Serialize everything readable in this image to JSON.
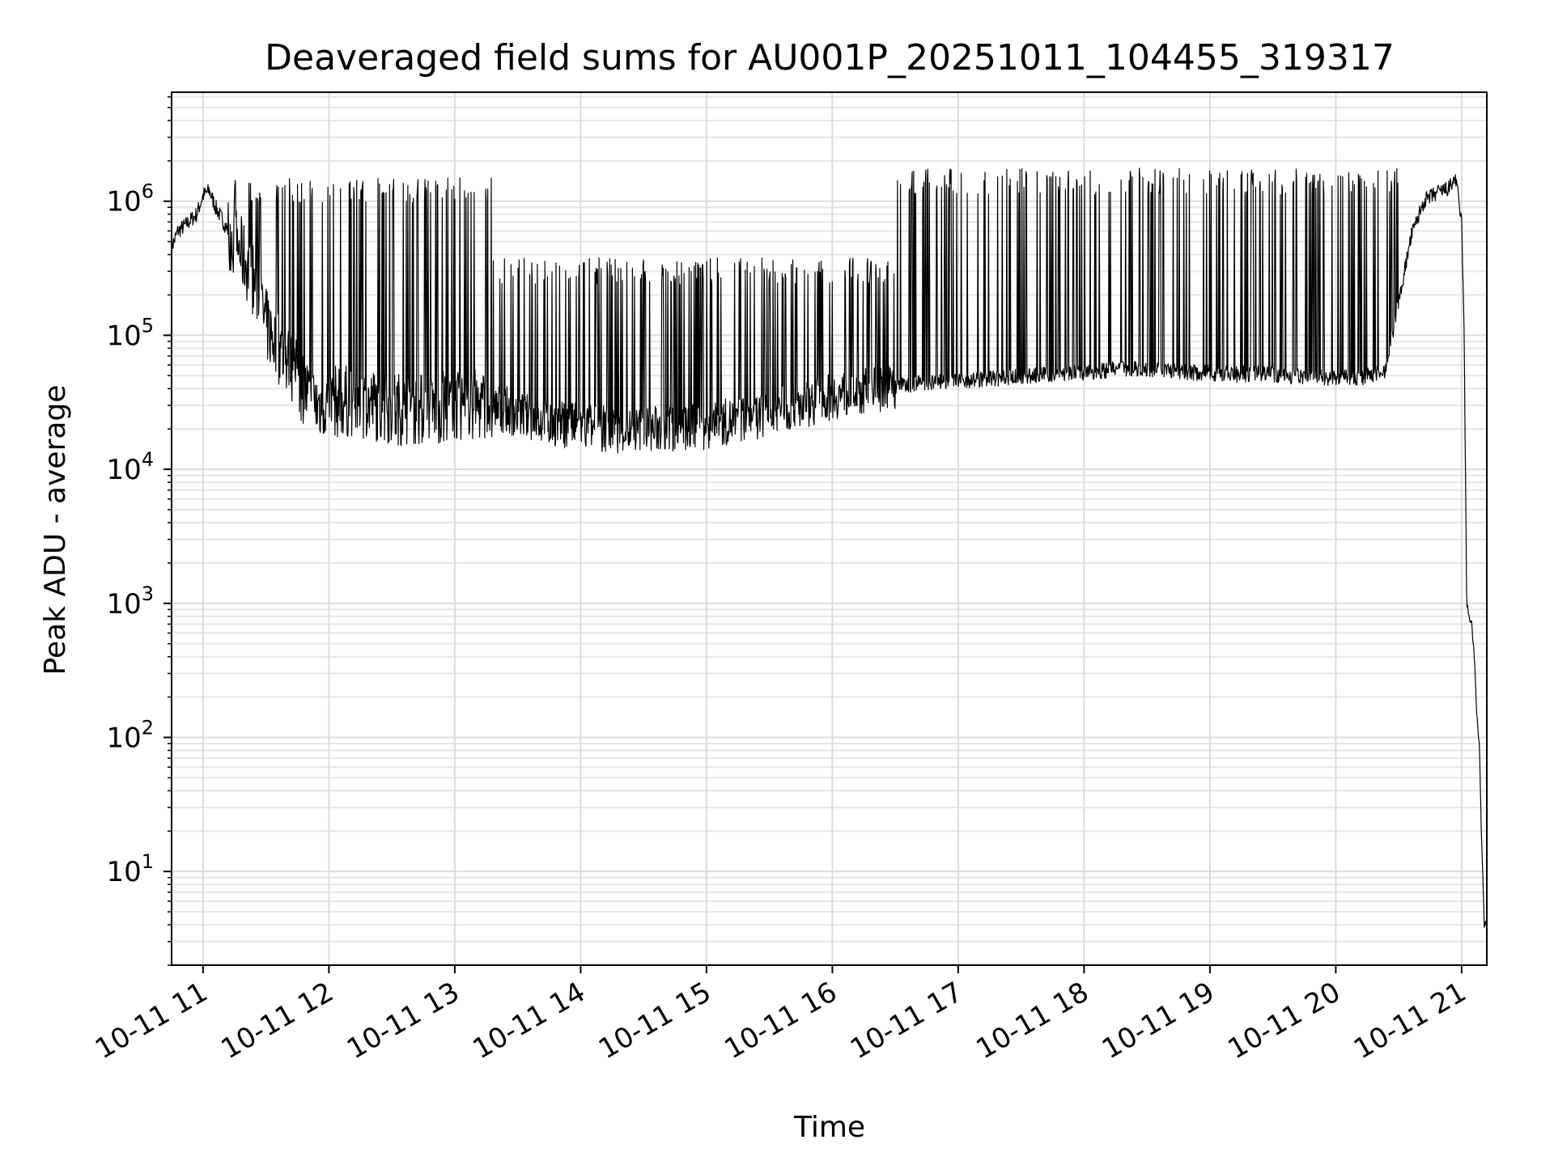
{
  "chart_data": {
    "type": "line",
    "title": "Deaveraged field sums for AU001P_20251011_104455_319317",
    "xlabel": "Time",
    "ylabel": "Peak ADU - average",
    "yscale": "log",
    "xlim_hours": [
      10.75,
      21.2
    ],
    "ylim": [
      2,
      6500000
    ],
    "grid": true,
    "line_color": "#000000",
    "x_ticks": [
      {
        "hour": 11,
        "label": "10-11 11"
      },
      {
        "hour": 12,
        "label": "10-11 12"
      },
      {
        "hour": 13,
        "label": "10-11 13"
      },
      {
        "hour": 14,
        "label": "10-11 14"
      },
      {
        "hour": 15,
        "label": "10-11 15"
      },
      {
        "hour": 16,
        "label": "10-11 16"
      },
      {
        "hour": 17,
        "label": "10-11 17"
      },
      {
        "hour": 18,
        "label": "10-11 18"
      },
      {
        "hour": 19,
        "label": "10-11 19"
      },
      {
        "hour": 20,
        "label": "10-11 20"
      },
      {
        "hour": 21,
        "label": "10-11 21"
      }
    ],
    "y_ticks": [
      {
        "value": 10,
        "base": "10",
        "exp": "1"
      },
      {
        "value": 100,
        "base": "10",
        "exp": "2"
      },
      {
        "value": 1000,
        "base": "10",
        "exp": "3"
      },
      {
        "value": 10000,
        "base": "10",
        "exp": "4"
      },
      {
        "value": 100000,
        "base": "10",
        "exp": "5"
      },
      {
        "value": 1000000,
        "base": "10",
        "exp": "6"
      }
    ],
    "series": [
      {
        "name": "Peak ADU - average",
        "points": [
          [
            10.75,
            450000
          ],
          [
            10.8,
            600000
          ],
          [
            10.85,
            650000
          ],
          [
            10.9,
            720000
          ],
          [
            10.95,
            800000
          ],
          [
            11.0,
            1100000
          ],
          [
            11.05,
            1200000
          ],
          [
            11.1,
            900000
          ],
          [
            11.2,
            600000
          ],
          [
            11.3,
            420000
          ],
          [
            11.4,
            260000
          ],
          [
            11.5,
            120000
          ],
          [
            11.6,
            80000
          ],
          [
            11.7,
            60000
          ],
          [
            11.8,
            40000
          ],
          [
            11.9,
            30000
          ],
          [
            12.0,
            32000
          ],
          [
            12.2,
            32000
          ],
          [
            12.4,
            30000
          ],
          [
            12.6,
            28000
          ],
          [
            12.8,
            28000
          ],
          [
            13.0,
            30000
          ],
          [
            13.2,
            30000
          ],
          [
            13.4,
            28000
          ],
          [
            13.6,
            24000
          ],
          [
            13.8,
            22000
          ],
          [
            14.0,
            21000
          ],
          [
            14.2,
            20000
          ],
          [
            14.4,
            19500
          ],
          [
            14.6,
            20000
          ],
          [
            14.8,
            20000
          ],
          [
            15.0,
            21000
          ],
          [
            15.2,
            23000
          ],
          [
            15.4,
            25000
          ],
          [
            15.6,
            28000
          ],
          [
            15.8,
            31000
          ],
          [
            16.0,
            35000
          ],
          [
            16.2,
            38000
          ],
          [
            16.4,
            40000
          ],
          [
            16.6,
            43000
          ],
          [
            16.8,
            45000
          ],
          [
            17.0,
            46000
          ],
          [
            17.2,
            47000
          ],
          [
            17.4,
            48000
          ],
          [
            17.6,
            50000
          ],
          [
            17.8,
            52000
          ],
          [
            18.0,
            53000
          ],
          [
            18.2,
            55000
          ],
          [
            18.4,
            57000
          ],
          [
            18.6,
            56000
          ],
          [
            18.8,
            53000
          ],
          [
            19.0,
            52000
          ],
          [
            19.2,
            51000
          ],
          [
            19.4,
            52000
          ],
          [
            19.6,
            50000
          ],
          [
            19.8,
            49000
          ],
          [
            20.0,
            48000
          ],
          [
            20.2,
            48000
          ],
          [
            20.4,
            55000
          ],
          [
            20.5,
            180000
          ],
          [
            20.6,
            550000
          ],
          [
            20.7,
            1000000
          ],
          [
            20.8,
            1150000
          ],
          [
            20.9,
            1250000
          ],
          [
            20.95,
            1500000
          ],
          [
            21.0,
            700000
          ],
          [
            21.02,
            100000
          ],
          [
            21.04,
            1000
          ],
          [
            21.06,
            800
          ],
          [
            21.08,
            700
          ],
          [
            21.1,
            400
          ],
          [
            21.12,
            150
          ],
          [
            21.14,
            90
          ],
          [
            21.16,
            15
          ],
          [
            21.18,
            4
          ],
          [
            21.2,
            4
          ]
        ]
      }
    ]
  }
}
